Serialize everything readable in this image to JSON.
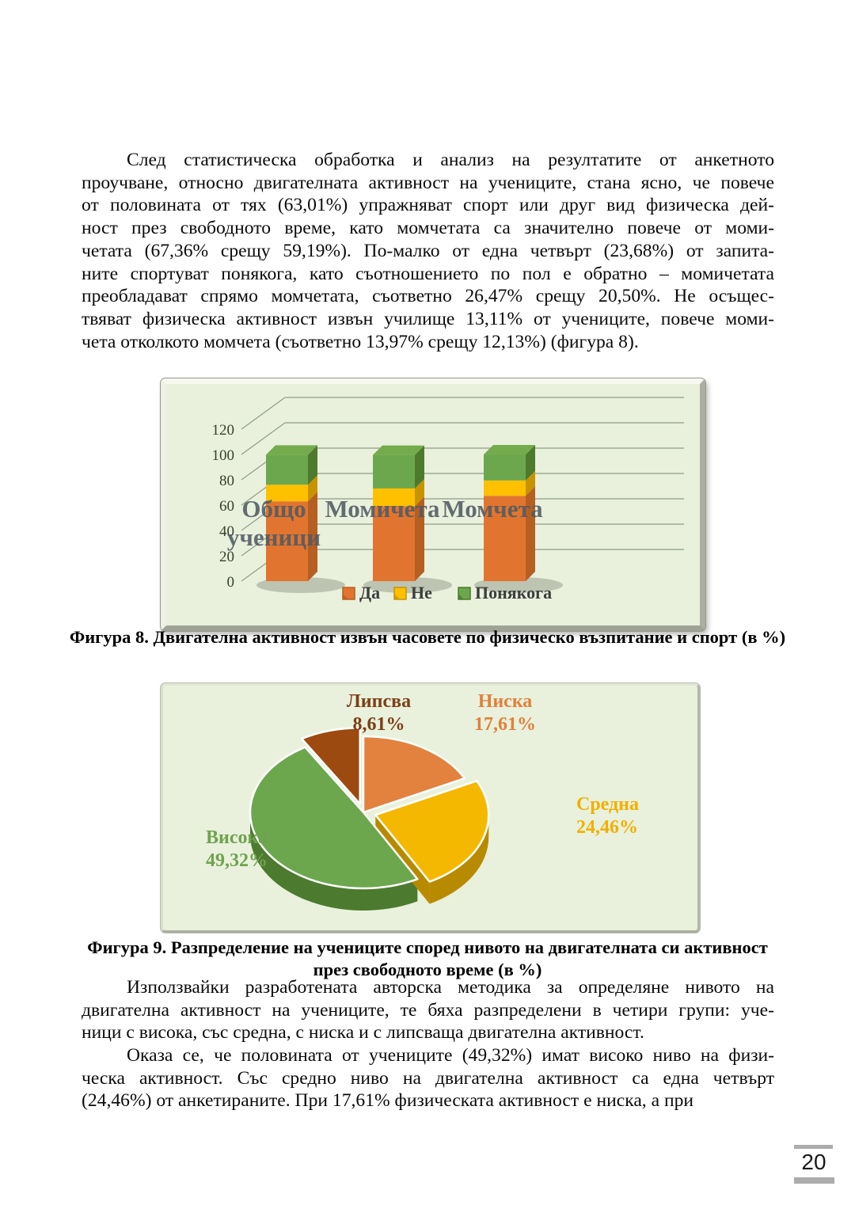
{
  "page": {
    "number": "20"
  },
  "paragraphs": [
    {
      "lines": [
        "След статистическа обработка и анализ на резултатите от анкетното",
        "проучване, относно двигателната активност на учениците, стана ясно, че повече",
        "от половината от тях (63,01%) упражняват спорт или друг вид физическа дей-",
        "ност през свободното време, като момчетата са значително повече от моми-",
        "четата (67,36% срещу 59,19%). По-малко от една четвърт (23,68%) от запита-",
        "ните спортуват понякога, като съотношението по пол е обратно – момичетата",
        "преобладават спрямо момчетата, съответно 26,47% срещу 20,50%. Не осъщес-",
        "твяват физическа активност извън училище 13,11% от учениците, повече моми-",
        "чета отколкото момчета (съответно 13,97% срещу 12,13%) (фигура 8)."
      ]
    },
    {
      "lines": [
        "Използвайки разработената авторска методика за определяне нивото на",
        "двигателна активност на учениците, те бяха разпределени в четири групи: уче-",
        "ници с висока, със средна, с ниска и с липсваща двигателна активност."
      ]
    },
    {
      "lines": [
        "Оказа се, че половината от учениците (49,32%) имат високо ниво на физи-",
        "ческа активност. Със средно ниво на двигателна активност са една четвърт",
        "(24,46%) от анкетираните. При 17,61% физическата активност е ниска, а при"
      ]
    }
  ],
  "figure8": {
    "caption": "Фигура 8. Двигателна активност извън часовете по физическо възпитание и спорт (в %)"
  },
  "figure9": {
    "caption_line1": "Фигура 9.  Разпределение на учениците според нивото на двигателната си активност",
    "caption_line2": "през свободното време (в %)"
  },
  "chart_data": [
    {
      "type": "bar",
      "stacked": true,
      "categories": [
        "Общо ученици",
        "Момичета",
        "Момчета"
      ],
      "series": [
        {
          "name": "Да",
          "color": "#E1752F",
          "side": "#B65F22",
          "top": "#E98A45",
          "values": [
            63.01,
            59.19,
            67.36
          ]
        },
        {
          "name": "Не",
          "color": "#FFC000",
          "side": "#C79400",
          "top": "#FFCE33",
          "values": [
            13.11,
            13.97,
            12.13
          ]
        },
        {
          "name": "Понякога",
          "color": "#6CA74E",
          "side": "#4D7A2D",
          "top": "#74AC4D",
          "values": [
            23.68,
            26.47,
            20.5
          ]
        }
      ],
      "yticks": [
        0,
        20,
        40,
        60,
        80,
        100,
        120
      ],
      "ylim": [
        0,
        120
      ],
      "grid": true,
      "legend_position": "bottom",
      "background": "#E9F1DC"
    },
    {
      "type": "pie",
      "slices": [
        {
          "label": "Ниска",
          "value": 17.61,
          "pct": "17,61%",
          "color": "#E2823E",
          "side": "#A85A20",
          "label_color": "#E0813B",
          "exploded": false
        },
        {
          "label": "Средна",
          "value": 24.46,
          "pct": "24,46%",
          "color": "#F5B800",
          "side": "#B88A00",
          "label_color": "#F0B000",
          "exploded": true
        },
        {
          "label": "Висока",
          "value": 49.32,
          "pct": "49,32%",
          "color": "#6CA74E",
          "side": "#4C7A2E",
          "label_color": "#6FA24F",
          "exploded": false
        },
        {
          "label": "Липсва",
          "value": 8.61,
          "pct": "8,61%",
          "color": "#9C4A10",
          "side": "#6E3208",
          "label_color": "#7B3F16",
          "exploded": true
        }
      ],
      "start_angle_deg": 0,
      "direction": "clockwise",
      "background": "#E7F0DA"
    }
  ]
}
